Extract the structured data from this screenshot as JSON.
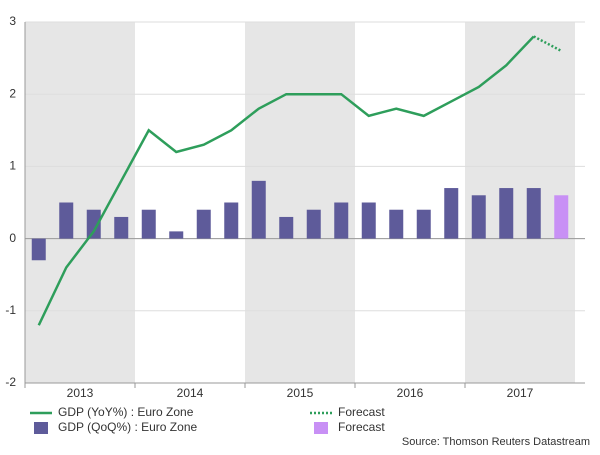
{
  "chart_data": {
    "type": "bar-line",
    "categories": [
      null,
      null,
      null,
      null,
      null,
      null,
      null,
      null,
      null,
      null,
      null,
      null,
      null,
      null,
      null,
      null,
      null,
      null,
      null,
      null
    ],
    "year_labels": [
      "2013",
      "2014",
      "2015",
      "2016",
      "2017"
    ],
    "series": [
      {
        "name": "GDP (YoY%) : Euro Zone",
        "kind": "line",
        "color": "#2e9e5b",
        "values": [
          -1.2,
          -0.4,
          0.1,
          0.8,
          1.5,
          1.2,
          1.3,
          1.5,
          1.8,
          2.0,
          2.0,
          2.0,
          1.7,
          1.8,
          1.7,
          1.9,
          2.1,
          2.4,
          2.8,
          null
        ]
      },
      {
        "name": "Forecast",
        "kind": "dotted-line",
        "color": "#2e9e5b",
        "values": [
          null,
          null,
          null,
          null,
          null,
          null,
          null,
          null,
          null,
          null,
          null,
          null,
          null,
          null,
          null,
          null,
          null,
          null,
          2.8,
          2.6
        ]
      },
      {
        "name": "GDP (QoQ%) : Euro Zone",
        "kind": "bar",
        "color": "#5e5b9a",
        "values": [
          -0.3,
          0.5,
          0.4,
          0.3,
          0.4,
          0.1,
          0.4,
          0.5,
          0.8,
          0.3,
          0.4,
          0.5,
          0.5,
          0.4,
          0.4,
          0.7,
          0.6,
          0.7,
          0.7,
          null
        ]
      },
      {
        "name": "Forecast",
        "kind": "bar",
        "color": "#c890f5",
        "values": [
          null,
          null,
          null,
          null,
          null,
          null,
          null,
          null,
          null,
          null,
          null,
          null,
          null,
          null,
          null,
          null,
          null,
          null,
          null,
          0.6
        ]
      }
    ],
    "ylim": [
      -2,
      3
    ],
    "yticks": [
      -2,
      -1,
      0,
      1,
      2,
      3
    ],
    "grid": true,
    "source": "Source: Thomson Reuters Datastream"
  }
}
